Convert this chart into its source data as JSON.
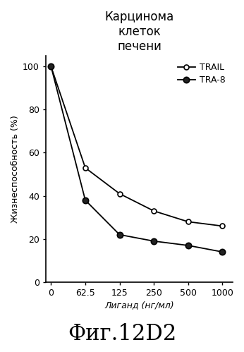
{
  "title_lines": [
    "Карцинома",
    "клеток",
    "печени"
  ],
  "xlabel": "Лиганд (нг/мл)",
  "ylabel": "Жизнеспособность (%)",
  "caption": "Фиг.12D2",
  "x_positions": [
    0,
    1,
    2,
    3,
    4,
    5
  ],
  "x_labels": [
    "0",
    "62.5",
    "125",
    "250",
    "500",
    "1000"
  ],
  "trail_values": [
    100,
    53,
    41,
    33,
    28,
    26
  ],
  "tra8_values": [
    100,
    38,
    22,
    19,
    17,
    14
  ],
  "ylim": [
    0,
    105
  ],
  "trail_label": "TRAIL",
  "tra8_label": "TRA-8",
  "line_color": "#000000",
  "trail_markerfacecolor": "white",
  "tra8_markerfacecolor": "#222222",
  "bg_color": "#ffffff",
  "ytick_values": [
    0,
    20,
    40,
    60,
    80,
    100
  ],
  "title_fontsize": 12,
  "axis_label_fontsize": 9,
  "caption_fontsize": 22,
  "legend_fontsize": 9,
  "tick_fontsize": 9
}
